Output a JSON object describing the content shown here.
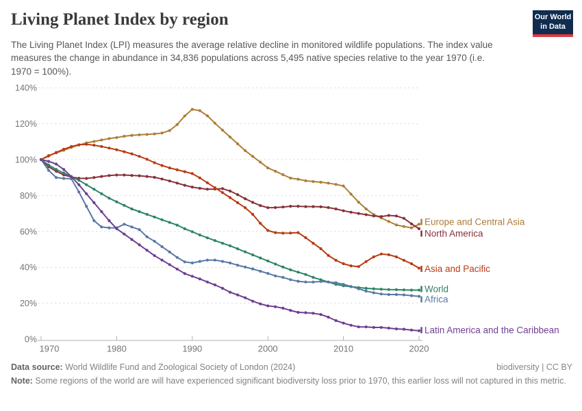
{
  "header": {
    "title": "Living Planet Index by region",
    "subtitle": "The Living Planet Index (LPI) measures the average relative decline in monitored wildlife populations. The index value measures the change in abundance in 34,836 populations across 5,495 native species relative to the year 1970 (i.e. 1970 = 100%)."
  },
  "logo": {
    "line1": "Our World",
    "line2": "in Data",
    "bg_color": "#102d50",
    "accent_color": "#dd3a3e"
  },
  "chart_data": {
    "type": "line",
    "title": "Living Planet Index by region",
    "xlabel": "",
    "ylabel": "",
    "grid": true,
    "legend_position": "right-inline",
    "ylim": [
      0,
      140
    ],
    "yticks": [
      0,
      20,
      40,
      60,
      80,
      100,
      120,
      140
    ],
    "ytick_labels": [
      "0%",
      "20%",
      "40%",
      "60%",
      "80%",
      "100%",
      "120%",
      "140%"
    ],
    "xticks": [
      1970,
      1980,
      1990,
      2000,
      2010,
      2020
    ],
    "xtick_labels": [
      "1970",
      "1980",
      "1990",
      "2000",
      "2010",
      "2020"
    ],
    "years": [
      1970,
      1971,
      1972,
      1973,
      1974,
      1975,
      1976,
      1977,
      1978,
      1979,
      1980,
      1981,
      1982,
      1983,
      1984,
      1985,
      1986,
      1987,
      1988,
      1989,
      1990,
      1991,
      1992,
      1993,
      1994,
      1995,
      1996,
      1997,
      1998,
      1999,
      2000,
      2001,
      2002,
      2003,
      2004,
      2005,
      2006,
      2007,
      2008,
      2009,
      2010,
      2011,
      2012,
      2013,
      2014,
      2015,
      2016,
      2017,
      2018,
      2019,
      2020
    ],
    "series": [
      {
        "name": "Europe and Central Asia",
        "color": "#ad7e38",
        "label_dy": -3.3,
        "values": [
          100,
          102.3,
          103.7,
          105.2,
          106.8,
          108.1,
          109.3,
          110.1,
          110.9,
          111.7,
          112.3,
          113,
          113.5,
          113.8,
          114,
          114.3,
          114.8,
          116.2,
          119.5,
          124.3,
          128,
          127.3,
          124.4,
          120.3,
          116.4,
          112.6,
          108.8,
          105,
          101.8,
          98.6,
          95.4,
          93.5,
          91.6,
          89.7,
          89.1,
          88.2,
          87.8,
          87.4,
          86.9,
          86.2,
          85.3,
          80.8,
          76.3,
          72.5,
          69.4,
          67.5,
          65.5,
          63.6,
          62.7,
          62,
          64
        ]
      },
      {
        "name": "North America",
        "color": "#883039",
        "label_dy": 7.1,
        "values": [
          100,
          96,
          93.5,
          91.5,
          90.3,
          89.6,
          89.5,
          90,
          90.6,
          91.1,
          91.4,
          91.4,
          91.2,
          91,
          90.6,
          90.1,
          89.2,
          88.1,
          86.9,
          85.7,
          84.7,
          84,
          83.5,
          83.6,
          83.8,
          82.5,
          80.5,
          78.2,
          76.2,
          74.4,
          73.2,
          73.3,
          73.6,
          74,
          74,
          73.8,
          73.8,
          73.7,
          73.3,
          72.5,
          71.5,
          70.7,
          70,
          69.3,
          68.6,
          68.3,
          68.9,
          68.6,
          67.3,
          64.2,
          61.5
        ]
      },
      {
        "name": "Asia and Pacific",
        "color": "#b93b14",
        "label_dy": 1.0,
        "values": [
          100,
          102,
          104,
          105.8,
          107.3,
          108.3,
          108.5,
          108,
          107.3,
          106.4,
          105.5,
          104.4,
          103.2,
          101.8,
          100.2,
          98.3,
          96.7,
          95.4,
          94.3,
          93.3,
          92.2,
          89.8,
          87.1,
          84.3,
          81.6,
          78.8,
          76,
          73.2,
          69.5,
          64.5,
          60.5,
          59.3,
          59,
          59.1,
          59.3,
          56.5,
          53.4,
          50.4,
          46.6,
          43.9,
          42,
          40.8,
          40.4,
          43.2,
          45.8,
          47.4,
          47,
          45.8,
          43.9,
          42,
          39.5
        ]
      },
      {
        "name": "World",
        "color": "#2c8465",
        "label_dy": -1.5,
        "values": [
          100,
          97,
          94.5,
          92.5,
          90.5,
          88.5,
          86,
          83.5,
          81,
          78.5,
          76.5,
          74.5,
          72.5,
          71,
          69.5,
          68,
          66.5,
          65,
          63.5,
          61.5,
          59.8,
          58,
          56.4,
          54.9,
          53.4,
          52,
          50.3,
          48.6,
          46.9,
          45.2,
          43.5,
          41.8,
          40.1,
          38.6,
          37.3,
          36,
          34.4,
          33.1,
          31.8,
          30.5,
          29.7,
          29.2,
          28.7,
          28.3,
          28,
          27.8,
          27.6,
          27.5,
          27.4,
          27.3,
          27.3
        ]
      },
      {
        "name": "Africa",
        "color": "#5878a5",
        "label_dy": 4.4,
        "values": [
          100,
          94,
          90,
          89.5,
          89.3,
          82,
          74,
          66,
          62.5,
          62,
          62,
          64,
          62.5,
          61,
          57,
          54.5,
          51.5,
          48.5,
          45.5,
          43,
          42.4,
          43.3,
          44,
          44,
          43.3,
          42.4,
          41.2,
          40.1,
          39.1,
          37.8,
          36.6,
          35.2,
          34.4,
          33.1,
          32.2,
          31.8,
          31.8,
          32.1,
          31.8,
          31.4,
          30.5,
          29.3,
          28,
          26.7,
          25.8,
          25.1,
          24.8,
          24.8,
          24.6,
          24.2,
          23.8
        ]
      },
      {
        "name": "Latin America and the Caribbean",
        "color": "#6d3e91",
        "label_dy": -1.0,
        "values": [
          100,
          99,
          97.5,
          94.5,
          90.5,
          86,
          81,
          76,
          71,
          66,
          61.5,
          58.5,
          55.5,
          52.5,
          49.5,
          46.5,
          44,
          41.5,
          39,
          36.5,
          35,
          33.5,
          31.8,
          30.2,
          28.3,
          26.1,
          24.6,
          23,
          21.1,
          19.6,
          18.5,
          18,
          17.2,
          16,
          14.9,
          14.7,
          14.4,
          13.7,
          12.2,
          10.3,
          8.9,
          7.7,
          6.8,
          6.8,
          6.5,
          6.5,
          6.1,
          5.7,
          5.5,
          5,
          4.6
        ]
      }
    ]
  },
  "footer": {
    "datasource_label": "Data source:",
    "datasource_value": " World Wildlife Fund and Zoological Society of London (2024)",
    "license": "biodiversity | CC BY",
    "note_label": "Note:",
    "note_value": " Some regions of the world are will have experienced significant biodiversity loss prior to 1970, this earlier loss will not captured in this metric."
  }
}
